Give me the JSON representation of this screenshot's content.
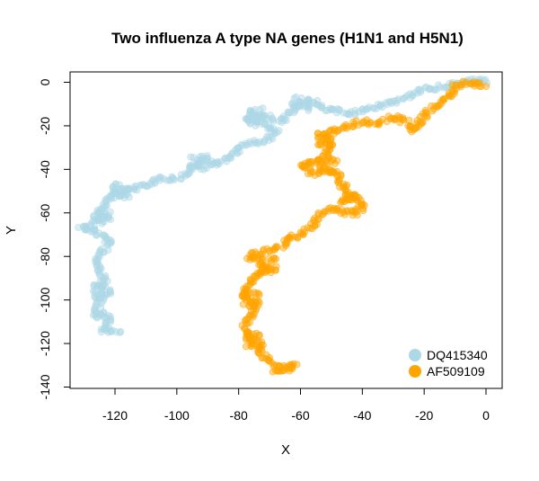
{
  "chart_data": {
    "type": "scatter",
    "title": "Two influenza A type NA genes (H1N1 and H5N1)",
    "xlabel": "X",
    "ylabel": "Y",
    "xlim": [
      -135,
      5
    ],
    "ylim": [
      -140,
      5
    ],
    "xticks": [
      -120,
      -100,
      -80,
      -60,
      -40,
      -20,
      0
    ],
    "yticks": [
      0,
      -20,
      -40,
      -60,
      -80,
      -100,
      -120,
      -140
    ],
    "grid": false,
    "legend_position": "bottom-right",
    "series": [
      {
        "name": "DQ415340",
        "color": "#add8e6",
        "path": [
          [
            0,
            0
          ],
          [
            -3,
            1
          ],
          [
            -8,
            0
          ],
          [
            -14,
            -2
          ],
          [
            -20,
            -3
          ],
          [
            -24,
            -6
          ],
          [
            -28,
            -9
          ],
          [
            -32,
            -10
          ],
          [
            -38,
            -12
          ],
          [
            -42,
            -14
          ],
          [
            -46,
            -14
          ],
          [
            -52,
            -12
          ],
          [
            -56,
            -9
          ],
          [
            -60,
            -10
          ],
          [
            -63,
            -14
          ],
          [
            -66,
            -18
          ],
          [
            -70,
            -16
          ],
          [
            -74,
            -15
          ],
          [
            -78,
            -17
          ],
          [
            -72,
            -20
          ],
          [
            -68,
            -22
          ],
          [
            -70,
            -26
          ],
          [
            -76,
            -28
          ],
          [
            -80,
            -30
          ],
          [
            -82,
            -34
          ],
          [
            -85,
            -36
          ],
          [
            -88,
            -38
          ],
          [
            -92,
            -36
          ],
          [
            -95,
            -38
          ],
          [
            -97,
            -42
          ],
          [
            -100,
            -44
          ],
          [
            -104,
            -44
          ],
          [
            -108,
            -46
          ],
          [
            -112,
            -48
          ],
          [
            -116,
            -50
          ],
          [
            -118,
            -52
          ],
          [
            -120,
            -50
          ],
          [
            -122,
            -54
          ],
          [
            -124,
            -56
          ],
          [
            -125,
            -60
          ],
          [
            -126,
            -64
          ],
          [
            -128,
            -66
          ],
          [
            -131,
            -67
          ],
          [
            -128,
            -68
          ],
          [
            -124,
            -70
          ],
          [
            -122,
            -74
          ],
          [
            -124,
            -78
          ],
          [
            -126,
            -82
          ],
          [
            -125,
            -86
          ],
          [
            -123,
            -90
          ],
          [
            -125,
            -94
          ],
          [
            -124,
            -98
          ],
          [
            -125,
            -102
          ],
          [
            -127,
            -106
          ],
          [
            -125,
            -108
          ],
          [
            -123,
            -106
          ],
          [
            -122,
            -110
          ],
          [
            -124,
            -114
          ],
          [
            -120,
            -114
          ],
          [
            -118,
            -115
          ]
        ],
        "clusters": [
          [
            -93,
            -37
          ],
          [
            -118,
            -50
          ],
          [
            -124,
            -62
          ],
          [
            -124,
            -96
          ],
          [
            -75,
            -15
          ],
          [
            -60,
            -10
          ]
        ]
      },
      {
        "name": "AF509109",
        "color": "#ffa500",
        "path": [
          [
            0,
            -1
          ],
          [
            -3,
            -1
          ],
          [
            -6,
            0
          ],
          [
            -10,
            -2
          ],
          [
            -12,
            -6
          ],
          [
            -14,
            -9
          ],
          [
            -17,
            -11
          ],
          [
            -20,
            -16
          ],
          [
            -22,
            -20
          ],
          [
            -23,
            -22
          ],
          [
            -26,
            -18
          ],
          [
            -30,
            -16
          ],
          [
            -33,
            -18
          ],
          [
            -36,
            -19
          ],
          [
            -40,
            -18
          ],
          [
            -45,
            -20
          ],
          [
            -50,
            -22
          ],
          [
            -52,
            -24
          ],
          [
            -51,
            -28
          ],
          [
            -52,
            -34
          ],
          [
            -54,
            -36
          ],
          [
            -57,
            -37
          ],
          [
            -60,
            -38
          ],
          [
            -58,
            -40
          ],
          [
            -55,
            -42
          ],
          [
            -51,
            -40
          ],
          [
            -48,
            -42
          ],
          [
            -47,
            -46
          ],
          [
            -45,
            -50
          ],
          [
            -43,
            -52
          ],
          [
            -41,
            -54
          ],
          [
            -40,
            -57
          ],
          [
            -42,
            -60
          ],
          [
            -46,
            -60
          ],
          [
            -50,
            -58
          ],
          [
            -53,
            -60
          ],
          [
            -55,
            -64
          ],
          [
            -58,
            -68
          ],
          [
            -60,
            -70
          ],
          [
            -64,
            -72
          ],
          [
            -66,
            -75
          ],
          [
            -70,
            -77
          ],
          [
            -72,
            -78
          ],
          [
            -75,
            -79
          ],
          [
            -77,
            -80
          ],
          [
            -74,
            -82
          ],
          [
            -72,
            -84
          ],
          [
            -70,
            -86
          ],
          [
            -73,
            -88
          ],
          [
            -75,
            -90
          ],
          [
            -77,
            -93
          ],
          [
            -78,
            -96
          ],
          [
            -77,
            -100
          ],
          [
            -75,
            -104
          ],
          [
            -76,
            -108
          ],
          [
            -78,
            -112
          ],
          [
            -77,
            -116
          ],
          [
            -75,
            -120
          ],
          [
            -73,
            -124
          ],
          [
            -70,
            -128
          ],
          [
            -68,
            -130
          ],
          [
            -65,
            -131
          ],
          [
            -62,
            -130
          ],
          [
            -64,
            -132
          ],
          [
            -66,
            -133
          ],
          [
            -69,
            -132
          ]
        ],
        "clusters": [
          [
            -52,
            -26
          ],
          [
            -51,
            -38
          ],
          [
            -44,
            -55
          ],
          [
            -70,
            -84
          ],
          [
            -76,
            -100
          ],
          [
            -75,
            -118
          ]
        ]
      }
    ]
  }
}
